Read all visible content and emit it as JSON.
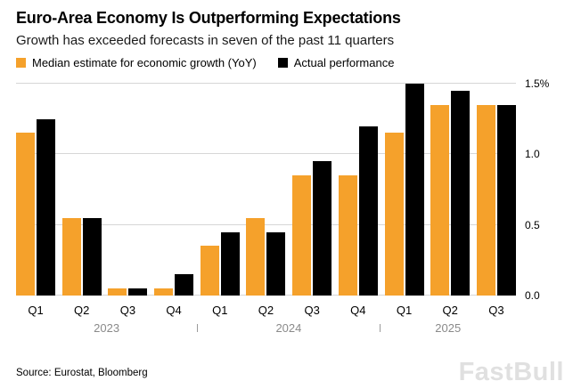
{
  "header": {
    "title": "Euro-Area Economy Is Outperforming Expectations",
    "subtitle": "Growth has exceeded forecasts in seven of the past 11 quarters"
  },
  "legend": {
    "items": [
      {
        "label": "Median estimate for economic growth (YoY)",
        "color": "#F5A12B"
      },
      {
        "label": "Actual performance",
        "color": "#000000"
      }
    ]
  },
  "footer": {
    "source": "Source: Eurostat, Bloomberg",
    "watermark": "FastBull"
  },
  "chart_data": {
    "type": "bar",
    "title": "Euro-Area Economy Is Outperforming Expectations",
    "subtitle": "Growth has exceeded forecasts in seven of the past 11 quarters",
    "categories": [
      "Q1",
      "Q2",
      "Q3",
      "Q4",
      "Q1",
      "Q2",
      "Q3",
      "Q4",
      "Q1",
      "Q2",
      "Q3"
    ],
    "series": [
      {
        "name": "Median estimate for economic growth (YoY)",
        "color": "#F5A12B",
        "values": [
          1.15,
          0.55,
          0.05,
          0.05,
          0.35,
          0.55,
          0.85,
          0.85,
          1.15,
          1.35,
          1.35
        ]
      },
      {
        "name": "Actual performance",
        "color": "#000000",
        "values": [
          1.25,
          0.55,
          0.05,
          0.15,
          0.45,
          0.45,
          0.95,
          1.2,
          1.5,
          1.45,
          1.35
        ]
      }
    ],
    "xlabel": "",
    "ylabel": "",
    "ylim": [
      0,
      1.55
    ],
    "yticks": [
      {
        "value": 0.0,
        "label": "0.0"
      },
      {
        "value": 0.5,
        "label": "0.5"
      },
      {
        "value": 1.0,
        "label": "1.0"
      },
      {
        "value": 1.5,
        "label": "1.5%"
      }
    ],
    "grid": "horizontal",
    "legend_position": "top",
    "year_groups": [
      {
        "label": "2023",
        "count": 4
      },
      {
        "label": "2024",
        "count": 4
      },
      {
        "label": "2025",
        "count": 3
      }
    ]
  }
}
